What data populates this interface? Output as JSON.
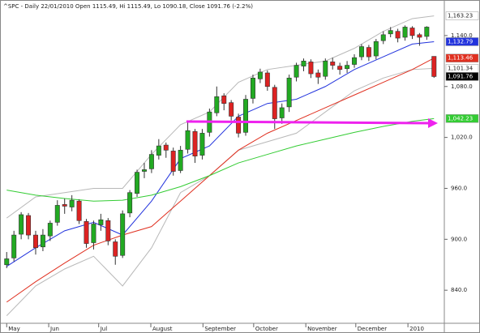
{
  "chart_data": {
    "type": "candlestick",
    "title": "^SPC - Daily 22/01/2010 Open 1115.49, Hi 1115.49, Lo 1090.18, Close 1091.76 (-2.2%)",
    "up_color": "#22aa22",
    "down_color": "#dd2222",
    "candles": [
      [
        870,
        885,
        866,
        877
      ],
      [
        878,
        910,
        874,
        905
      ],
      [
        906,
        932,
        900,
        929
      ],
      [
        928,
        931,
        900,
        905
      ],
      [
        905,
        910,
        882,
        890
      ],
      [
        891,
        912,
        886,
        905
      ],
      [
        904,
        922,
        898,
        919
      ],
      [
        920,
        946,
        916,
        940
      ],
      [
        941,
        948,
        930,
        939
      ],
      [
        938,
        952,
        933,
        946
      ],
      [
        945,
        947,
        918,
        922
      ],
      [
        921,
        924,
        890,
        895
      ],
      [
        896,
        922,
        888,
        918
      ],
      [
        917,
        930,
        910,
        923
      ],
      [
        922,
        925,
        893,
        898
      ],
      [
        897,
        900,
        870,
        880
      ],
      [
        881,
        934,
        878,
        930
      ],
      [
        931,
        958,
        926,
        955
      ],
      [
        954,
        982,
        950,
        979
      ],
      [
        980,
        990,
        972,
        982
      ],
      [
        983,
        1005,
        978,
        1000
      ],
      [
        999,
        1018,
        994,
        1010
      ],
      [
        1011,
        1014,
        996,
        1005
      ],
      [
        1004,
        1008,
        975,
        980
      ],
      [
        981,
        1010,
        978,
        1005
      ],
      [
        1006,
        1039,
        1001,
        1028
      ],
      [
        1027,
        1030,
        990,
        998
      ],
      [
        999,
        1030,
        994,
        1025
      ],
      [
        1026,
        1054,
        1021,
        1050
      ],
      [
        1049,
        1080,
        1045,
        1068
      ],
      [
        1069,
        1072,
        1052,
        1060
      ],
      [
        1061,
        1064,
        1040,
        1045
      ],
      [
        1044,
        1048,
        1020,
        1025
      ],
      [
        1026,
        1070,
        1022,
        1065
      ],
      [
        1066,
        1094,
        1060,
        1090
      ],
      [
        1089,
        1101,
        1084,
        1097
      ],
      [
        1096,
        1099,
        1075,
        1080
      ],
      [
        1079,
        1082,
        1030,
        1042
      ],
      [
        1043,
        1060,
        1036,
        1055
      ],
      [
        1056,
        1094,
        1050,
        1090
      ],
      [
        1091,
        1108,
        1086,
        1105
      ],
      [
        1104,
        1113,
        1098,
        1110
      ],
      [
        1109,
        1112,
        1090,
        1095
      ],
      [
        1096,
        1100,
        1083,
        1091
      ],
      [
        1092,
        1113,
        1088,
        1110
      ],
      [
        1109,
        1114,
        1100,
        1105
      ],
      [
        1104,
        1108,
        1094,
        1100
      ],
      [
        1101,
        1110,
        1096,
        1105
      ],
      [
        1106,
        1118,
        1102,
        1114
      ],
      [
        1115,
        1130,
        1111,
        1127
      ],
      [
        1126,
        1129,
        1110,
        1115
      ],
      [
        1116,
        1136,
        1112,
        1133
      ],
      [
        1134,
        1145,
        1130,
        1141
      ],
      [
        1142,
        1150,
        1138,
        1146
      ],
      [
        1145,
        1148,
        1132,
        1137
      ],
      [
        1138,
        1152,
        1134,
        1150
      ],
      [
        1149,
        1151,
        1136,
        1140
      ],
      [
        1141,
        1143,
        1128,
        1138
      ],
      [
        1139,
        1151,
        1135,
        1150
      ],
      [
        1115.49,
        1115.49,
        1090.18,
        1091.76
      ]
    ],
    "close_label": "1,091.76",
    "line_x": [
      0,
      4,
      8,
      12,
      16,
      20,
      24,
      28,
      32,
      36,
      40,
      44,
      48,
      52,
      56,
      59
    ],
    "series": [
      {
        "color": "#b8b8b8",
        "values": [
          925,
          950,
          955,
          960,
          960,
          1000,
          1035,
          1050,
          1085,
          1100,
          1105,
          1110,
          1125,
          1145,
          1160,
          1163.23
        ],
        "end_label": "1,163.23"
      },
      {
        "color": "#b8b8b8",
        "values": [
          810,
          845,
          865,
          880,
          845,
          890,
          955,
          975,
          1005,
          1015,
          1025,
          1050,
          1075,
          1090,
          1100,
          1101.34
        ],
        "end_label": "1,101.34"
      },
      {
        "color": "#2233dd",
        "values": [
          868,
          890,
          910,
          920,
          905,
          945,
          995,
          1010,
          1045,
          1060,
          1065,
          1080,
          1100,
          1115,
          1130,
          1132.79
        ],
        "end_label": "1,132.79"
      },
      {
        "color": "#e03020",
        "values": [
          826,
          850,
          872,
          893,
          905,
          915,
          945,
          975,
          1005,
          1025,
          1040,
          1055,
          1070,
          1085,
          1100,
          1113.46
        ],
        "end_label": "1,113.46"
      },
      {
        "color": "#33cc33",
        "values": [
          958,
          952,
          948,
          945,
          946,
          952,
          962,
          975,
          990,
          1000,
          1010,
          1018,
          1026,
          1033,
          1039,
          1042.23
        ],
        "end_label": "1,042.23"
      }
    ],
    "xlim": [
      -0.7,
      60.2
    ],
    "xticks": [
      {
        "value": 0,
        "label": "May"
      },
      {
        "value": 5.8,
        "label": "Jun"
      },
      {
        "value": 12.7,
        "label": "Jul"
      },
      {
        "value": 19.9,
        "label": "August"
      },
      {
        "value": 27.1,
        "label": "September"
      },
      {
        "value": 34.1,
        "label": "October"
      },
      {
        "value": 41.3,
        "label": "November"
      },
      {
        "value": 48.2,
        "label": "December"
      },
      {
        "value": 55.4,
        "label": "2010"
      }
    ],
    "ylim": [
      802,
      1180
    ],
    "yticks": [
      {
        "value": 840,
        "label": "840.0"
      },
      {
        "value": 900,
        "label": "900.0"
      },
      {
        "value": 960,
        "label": "960.0"
      },
      {
        "value": 1020,
        "label": "1,020.0"
      },
      {
        "value": 1080,
        "label": "1,080.0"
      },
      {
        "value": 1140,
        "label": "1,140.0"
      }
    ]
  }
}
